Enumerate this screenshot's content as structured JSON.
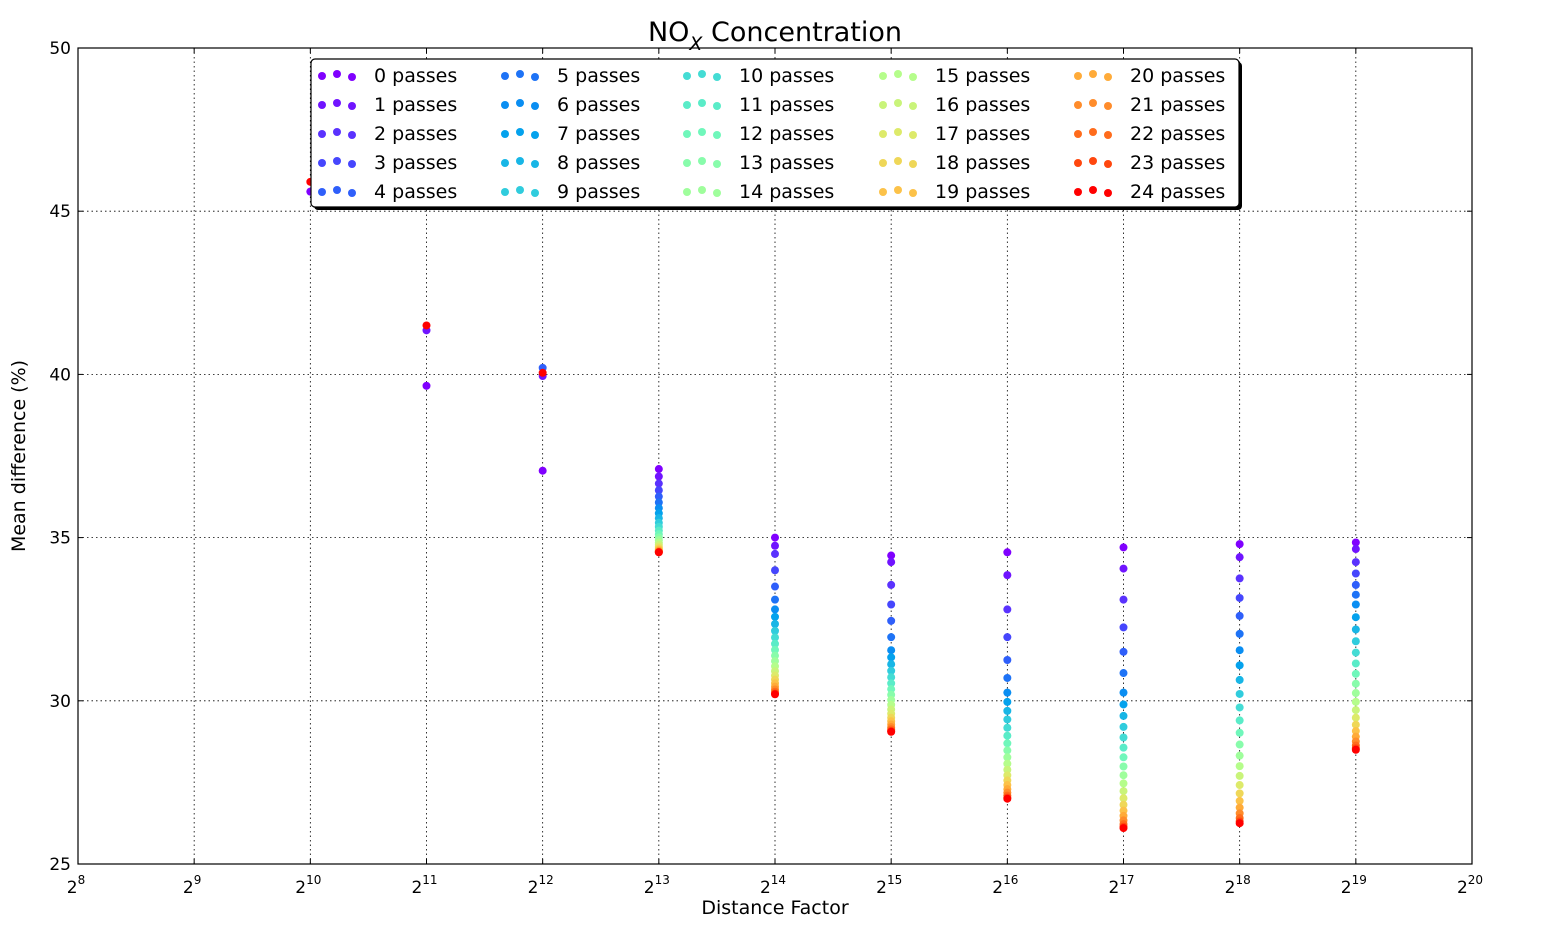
{
  "chart_data": {
    "type": "scatter",
    "title_main": "NO",
    "title_sub": "X",
    "title_rest": " Concentration",
    "xlabel": "Distance Factor",
    "ylabel": "Mean difference (%)",
    "x_scale": "log2",
    "xlim_exponent": [
      8,
      20
    ],
    "ylim": [
      25,
      50
    ],
    "grid": true,
    "legend_placement": "top-center",
    "x_tick_base": "2",
    "x_tick_exponents": [
      "8",
      "9",
      "10",
      "11",
      "12",
      "13",
      "14",
      "15",
      "16",
      "17",
      "18",
      "19",
      "20"
    ],
    "y_ticks": [
      "25",
      "30",
      "35",
      "40",
      "45",
      "50"
    ],
    "x_exponents": [
      10,
      11,
      12,
      13,
      14,
      15,
      16,
      17,
      18,
      19
    ],
    "anchor_values": [
      [
        45.6,
        45.9
      ],
      [
        39.65,
        41.35,
        41.5
      ],
      [
        37.05,
        39.95,
        40.2,
        40.05
      ],
      [
        37.1,
        34.55
      ],
      [
        35.0,
        34.75,
        34.5,
        34.0,
        33.5,
        33.1,
        32.8,
        30.2
      ],
      [
        34.45,
        34.25,
        33.55,
        32.95,
        32.45,
        31.95,
        31.55,
        29.05
      ],
      [
        34.55,
        33.85,
        32.8,
        31.95,
        31.25,
        30.7,
        30.25,
        27.0
      ],
      [
        34.7,
        34.05,
        33.1,
        32.25,
        31.5,
        30.85,
        30.25,
        26.1
      ],
      [
        34.8,
        34.4,
        33.75,
        33.15,
        32.6,
        32.05,
        31.55,
        26.25
      ],
      [
        34.85,
        34.65,
        34.25,
        33.9,
        33.55,
        33.25,
        32.95,
        28.5
      ]
    ],
    "passes_shown": [
      [
        0,
        24
      ],
      [
        0,
        1,
        24
      ],
      [
        0,
        1,
        4,
        24
      ],
      [
        0,
        24
      ],
      [
        0,
        1,
        2,
        3,
        4,
        5,
        6,
        24
      ],
      [
        0,
        1,
        2,
        3,
        4,
        5,
        6,
        24
      ],
      [
        0,
        1,
        2,
        3,
        4,
        5,
        6,
        24
      ],
      [
        0,
        1,
        2,
        3,
        4,
        5,
        6,
        24
      ],
      [
        0,
        1,
        2,
        3,
        4,
        5,
        6,
        24
      ],
      [
        0,
        1,
        2,
        3,
        4,
        5,
        6,
        24
      ]
    ],
    "legend": [
      "0 passes",
      "1 passes",
      "2 passes",
      "3 passes",
      "4 passes",
      "5 passes",
      "6 passes",
      "7 passes",
      "8 passes",
      "9 passes",
      "10 passes",
      "11 passes",
      "12 passes",
      "13 passes",
      "14 passes",
      "15 passes",
      "16 passes",
      "17 passes",
      "18 passes",
      "19 passes",
      "20 passes",
      "21 passes",
      "22 passes",
      "23 passes",
      "24 passes"
    ],
    "colors": [
      "#8000ff",
      "#7014ff",
      "#5a32fe",
      "#4646fd",
      "#2f5ffa",
      "#1e73f6",
      "#0a8ef2",
      "#04a2ed",
      "#18b6e6",
      "#30ccdd",
      "#44dcd4",
      "#5aecc8",
      "#70f7bb",
      "#88fcab",
      "#9ffe9c",
      "#b5fd8b",
      "#c9f47a",
      "#ddea6a",
      "#efd758",
      "#fcc249",
      "#ffab39",
      "#ff8c2b",
      "#ff6c1c",
      "#ff470e",
      "#ff0000"
    ]
  }
}
